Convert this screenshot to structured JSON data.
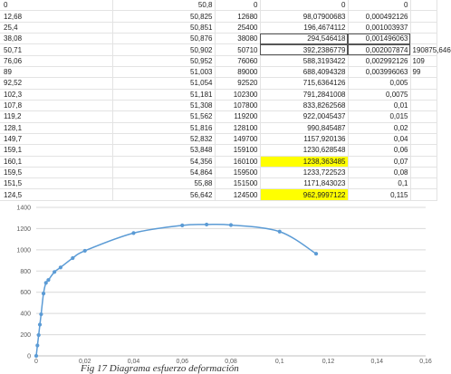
{
  "spreadsheet": {
    "rows": [
      [
        "0",
        "50,8",
        "0",
        "0",
        "0",
        ""
      ],
      [
        "12,68",
        "50,825",
        "12680",
        "98,07900683",
        "0,000492126",
        ""
      ],
      [
        "25,4",
        "50,851",
        "25400",
        "196,4674112",
        "0,001003937",
        ""
      ],
      [
        "38,08",
        "50,876",
        "38080",
        "294,546418",
        "0,001496063",
        ""
      ],
      [
        "50,71",
        "50,902",
        "50710",
        "392,2386779",
        "0,002007874",
        "190875,646"
      ],
      [
        "76,06",
        "50,952",
        "76060",
        "588,3193422",
        "0,002992126",
        "109"
      ],
      [
        "89",
        "51,003",
        "89000",
        "688,4094328",
        "0,003996063",
        "99"
      ],
      [
        "92,52",
        "51,054",
        "92520",
        "715,6364126",
        "0,005",
        ""
      ],
      [
        "102,3",
        "51,181",
        "102300",
        "791,2841008",
        "0,0075",
        ""
      ],
      [
        "107,8",
        "51,308",
        "107800",
        "833,8262568",
        "0,01",
        ""
      ],
      [
        "119,2",
        "51,562",
        "119200",
        "922,0045437",
        "0,015",
        ""
      ],
      [
        "128,1",
        "51,816",
        "128100",
        "990,845487",
        "0,02",
        ""
      ],
      [
        "149,7",
        "52,832",
        "149700",
        "1157,920136",
        "0,04",
        ""
      ],
      [
        "159,1",
        "53,848",
        "159100",
        "1230,628548",
        "0,06",
        ""
      ],
      [
        "160,1",
        "54,356",
        "160100",
        "1238,363485",
        "0,07",
        ""
      ],
      [
        "159,5",
        "54,864",
        "159500",
        "1233,722523",
        "0,08",
        ""
      ],
      [
        "151,5",
        "55,88",
        "151500",
        "1171,843023",
        "0,1",
        ""
      ],
      [
        "124,5",
        "56,642",
        "124500",
        "962,9997122",
        "0,115",
        ""
      ]
    ],
    "highlight_color": "#ffff00"
  },
  "chart_data": {
    "type": "scatter",
    "x": [
      0,
      0.000492126,
      0.001003937,
      0.001496063,
      0.002007874,
      0.002992126,
      0.003996063,
      0.005,
      0.0075,
      0.01,
      0.015,
      0.02,
      0.04,
      0.06,
      0.07,
      0.08,
      0.1,
      0.115
    ],
    "y": [
      0,
      98.07900683,
      196.4674112,
      294.546418,
      392.2386779,
      588.3193422,
      688.4094328,
      715.6364126,
      791.2841008,
      833.8262568,
      922.0045437,
      990.845487,
      1157.920136,
      1230.628548,
      1238.363485,
      1233.722523,
      1171.843023,
      962.9997122
    ],
    "xlim": [
      0,
      0.16
    ],
    "ylim": [
      0,
      1400
    ],
    "xticks": [
      "0",
      "0,02",
      "0,04",
      "0,06",
      "0,08",
      "0,1",
      "0,12",
      "0,14",
      "0,16"
    ],
    "yticks": [
      "0",
      "200",
      "400",
      "600",
      "800",
      "1000",
      "1200",
      "1400"
    ],
    "grid": true,
    "smooth_line": true,
    "color": "#5b9bd5"
  },
  "caption": "Fig 17 Diagrama esfuerzo deformación"
}
